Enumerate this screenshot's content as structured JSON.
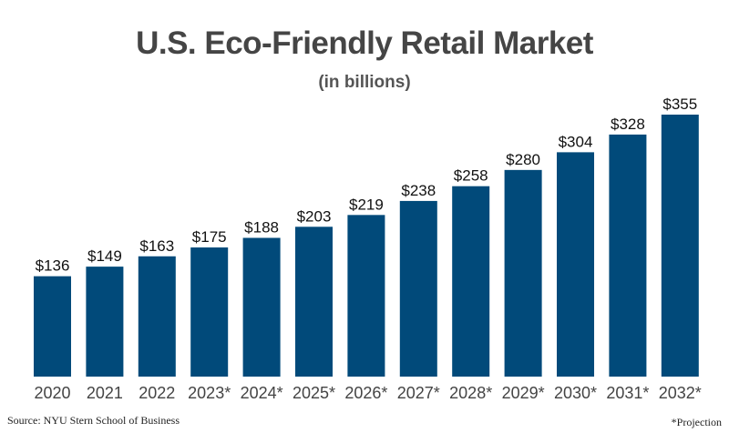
{
  "chart_data": {
    "type": "bar",
    "title": "U.S. Eco-Friendly Retail Market",
    "subtitle": "(in billions)",
    "categories": [
      "2020",
      "2021",
      "2022",
      "2023*",
      "2024*",
      "2025*",
      "2026*",
      "2027*",
      "2028*",
      "2029*",
      "2030*",
      "2031*",
      "2032*"
    ],
    "values": [
      136,
      149,
      163,
      175,
      188,
      203,
      219,
      238,
      258,
      280,
      304,
      328,
      355
    ],
    "value_labels": [
      "$136",
      "$149",
      "$163",
      "$175",
      "$188",
      "$203",
      "$219",
      "$238",
      "$258",
      "$280",
      "$304",
      "$328",
      "$355"
    ],
    "ylim": [
      0,
      355
    ],
    "grid": false,
    "bar_color": "#014a7a",
    "source": "Source: NYU Stern School of Business",
    "note": "*Projection"
  }
}
